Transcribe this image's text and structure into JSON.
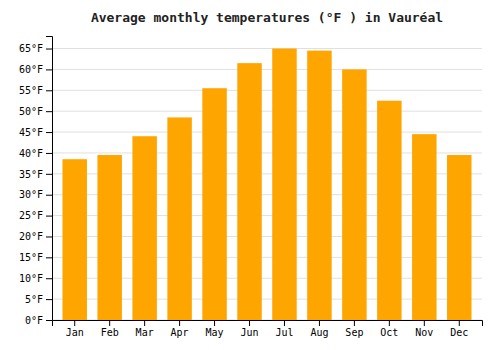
{
  "chart_data": {
    "type": "bar",
    "title": "Average monthly temperatures (°F ) in Vauréal",
    "categories": [
      "Jan",
      "Feb",
      "Mar",
      "Apr",
      "May",
      "Jun",
      "Jul",
      "Aug",
      "Sep",
      "Oct",
      "Nov",
      "Dec"
    ],
    "values": [
      38.5,
      39.5,
      44.0,
      48.5,
      55.5,
      61.5,
      65.0,
      64.5,
      60.0,
      52.5,
      44.5,
      39.5
    ],
    "color": "#FFA500",
    "ylim": [
      0,
      68
    ],
    "yticks": [
      {
        "value": 0,
        "label": "0°F"
      },
      {
        "value": 5,
        "label": "5°F"
      },
      {
        "value": 10,
        "label": "10°F"
      },
      {
        "value": 15,
        "label": "15°F"
      },
      {
        "value": 20,
        "label": "20°F"
      },
      {
        "value": 25,
        "label": "25°F"
      },
      {
        "value": 30,
        "label": "30°F"
      },
      {
        "value": 35,
        "label": "35°F"
      },
      {
        "value": 40,
        "label": "40°F"
      },
      {
        "value": 45,
        "label": "45°F"
      },
      {
        "value": 50,
        "label": "50°F"
      },
      {
        "value": 55,
        "label": "55°F"
      },
      {
        "value": 60,
        "label": "60°F"
      },
      {
        "value": 65,
        "label": "65°F"
      }
    ],
    "grid": true
  }
}
